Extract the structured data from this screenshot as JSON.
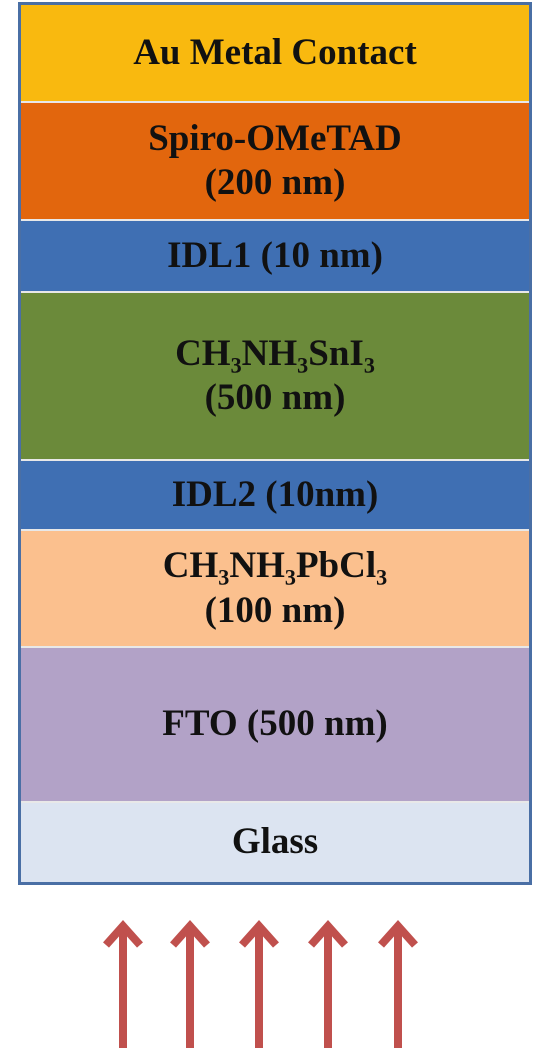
{
  "layers": [
    {
      "lines": [
        "Au Metal Contact"
      ]
    },
    {
      "lines": [
        "Spiro-OMeTAD",
        "(200 nm)"
      ]
    },
    {
      "lines": [
        "IDL1 (10 nm)"
      ]
    },
    {
      "lines": [
        "CH₃NH₃SnI₃",
        "(500 nm)"
      ]
    },
    {
      "lines": [
        "IDL2 (10nm)"
      ]
    },
    {
      "lines": [
        "CH₃NH₃PbCl₃",
        "(100 nm)"
      ]
    },
    {
      "lines": [
        "FTO (500 nm)"
      ]
    },
    {
      "lines": [
        "Glass"
      ]
    }
  ]
}
